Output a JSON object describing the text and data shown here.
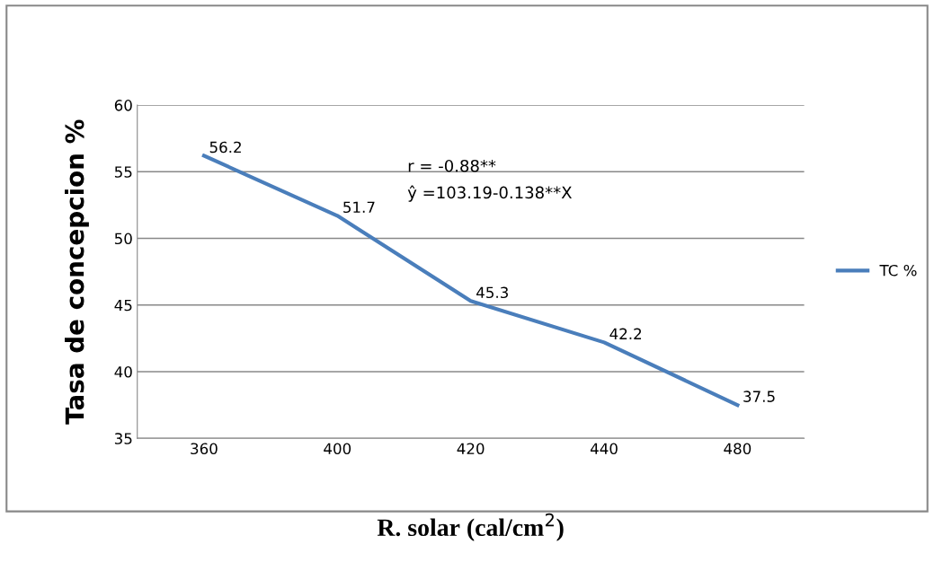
{
  "chart_data": {
    "type": "line",
    "xlabel": "R. solar (cal/cm$^{2}$)",
    "ylabel": "Tasa de concepcion %",
    "categories": [
      "360",
      "400",
      "420",
      "440",
      "480"
    ],
    "series": [
      {
        "name": "TC %",
        "color": "#4a7ebb",
        "values": [
          56.2,
          51.7,
          45.3,
          42.2,
          37.5
        ]
      }
    ],
    "ylim": [
      35,
      60
    ],
    "yticks": [
      35,
      40,
      45,
      50,
      55,
      60
    ],
    "grid": "y",
    "legend": "right",
    "data_labels": true,
    "marker": "none",
    "line_style": "solid",
    "annotations": [
      "r = -0.88**",
      "ŷ =103.19-0.138**X"
    ]
  }
}
